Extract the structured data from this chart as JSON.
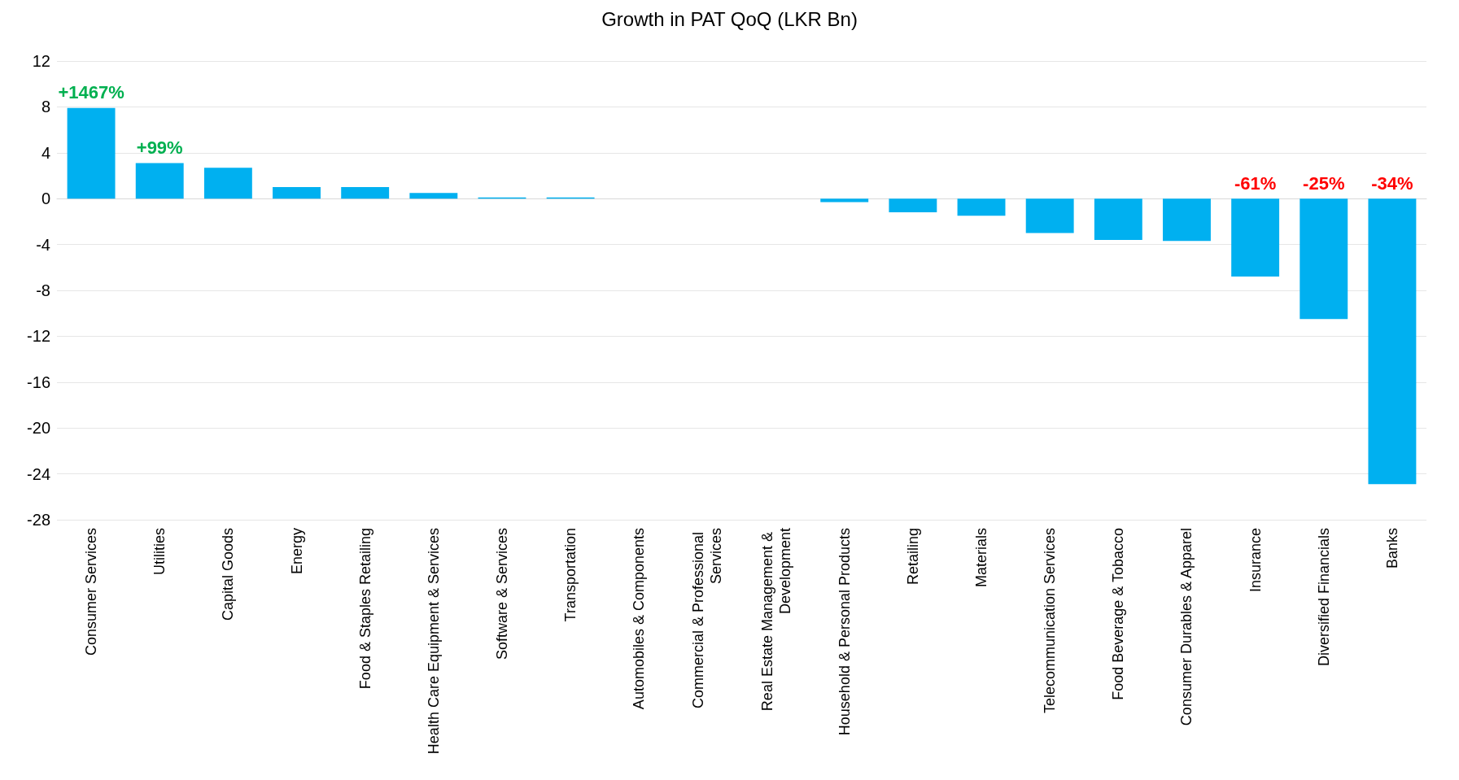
{
  "chart_data": {
    "type": "bar",
    "title": "Growth in PAT QoQ (LKR Bn)",
    "categories": [
      "Consumer Services",
      "Utilities",
      "Capital Goods",
      "Energy",
      "Food & Staples Retailing",
      "Health Care Equipment & Services",
      "Software & Services",
      "Transportation",
      "Automobiles & Components",
      "Commercial & Professional Services",
      "Real Estate Management & Development",
      "Household & Personal Products",
      "Retailing",
      "Materials",
      "Telecommunication Services",
      "Food Beverage & Tobacco",
      "Consumer Durables & Apparel",
      "Insurance",
      "Diversified Financials",
      "Banks"
    ],
    "values": [
      7.9,
      3.1,
      2.7,
      1.0,
      1.0,
      0.5,
      0.1,
      0.1,
      0,
      0,
      0,
      -0.3,
      -1.2,
      -1.5,
      -3.0,
      -3.6,
      -3.7,
      -6.8,
      -10.5,
      -24.9
    ],
    "color": "#00b0f0",
    "ylim": [
      -28,
      12
    ],
    "yticks": [
      -28,
      -24,
      -20,
      -16,
      -12,
      -8,
      -4,
      0,
      4,
      8,
      12
    ],
    "grid": "y",
    "annotations": [
      {
        "text": "+1467%",
        "x": "Consumer Services",
        "y": 7.9
      },
      {
        "text": "+99%",
        "x": "Utilities",
        "y": 3.1
      },
      {
        "text": "-61%",
        "x": "Insurance",
        "y": 0
      },
      {
        "text": "-25%",
        "x": "Diversified Financials",
        "y": 0
      },
      {
        "text": "-34%",
        "x": "Banks",
        "y": 0
      }
    ]
  }
}
